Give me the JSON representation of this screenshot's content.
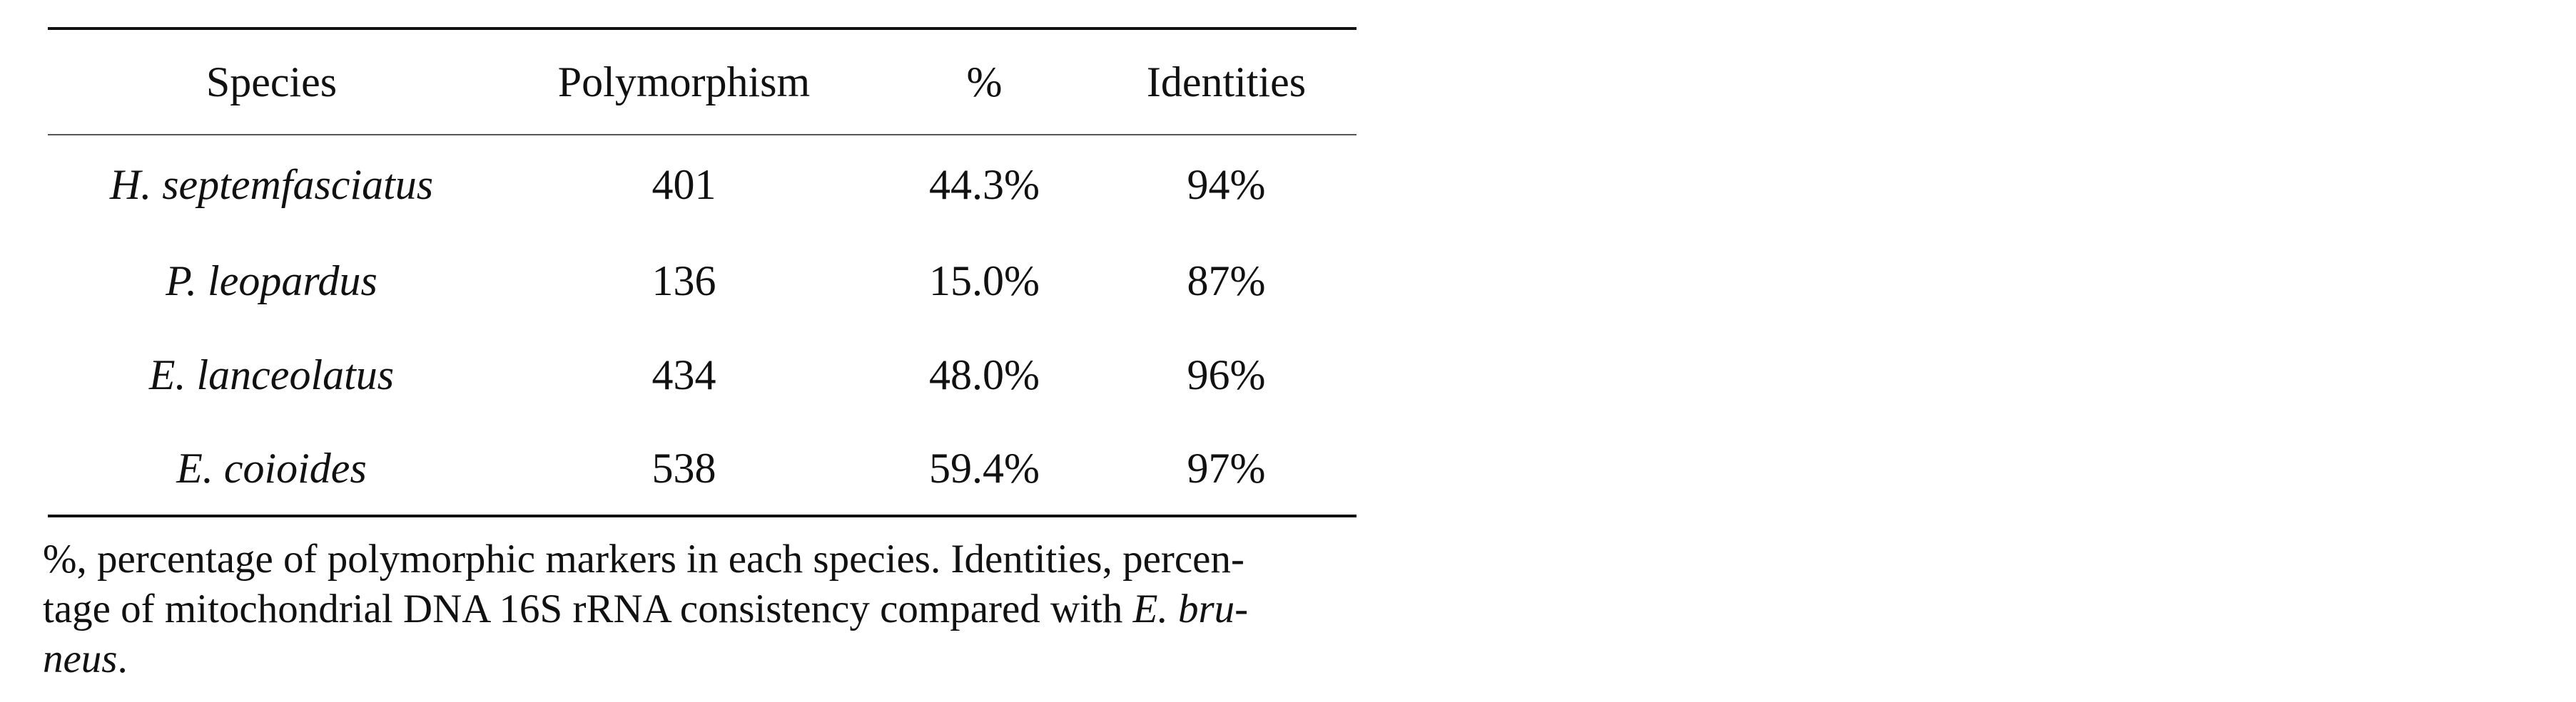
{
  "table": {
    "headers": [
      "Species",
      "Polymorphism",
      "%",
      "Identities"
    ],
    "rows": [
      {
        "species": "H. septemfasciatus",
        "polymorphism": "401",
        "percent": "44.3%",
        "identities": "94%"
      },
      {
        "species": "P. leopardus",
        "polymorphism": "136",
        "percent": "15.0%",
        "identities": "87%"
      },
      {
        "species": "E. lanceolatus",
        "polymorphism": "434",
        "percent": "48.0%",
        "identities": "96%"
      },
      {
        "species": "E. coioides",
        "polymorphism": "538",
        "percent": "59.4%",
        "identities": "97%"
      }
    ]
  },
  "footnote": {
    "line1": "%, percentage of polymorphic markers in each species. Identities, percen-",
    "line2_text": "tage of mitochondrial DNA 16S rRNA consistency compared with ",
    "line2_italic": "E. bru-",
    "line3_italic": "neus",
    "line3_end": "."
  }
}
